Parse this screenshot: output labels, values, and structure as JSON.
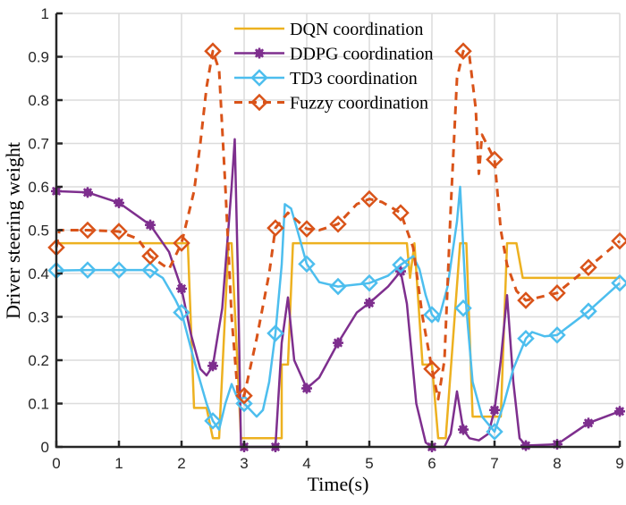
{
  "chart_data": {
    "type": "line",
    "title": "",
    "xlabel": "Time(s)",
    "ylabel": "Driver steering weight",
    "xlim": [
      0,
      9
    ],
    "ylim": [
      0,
      1
    ],
    "xticks": [
      0,
      1,
      2,
      3,
      4,
      5,
      6,
      7,
      8,
      9
    ],
    "yticks": [
      0,
      0.1,
      0.2,
      0.3,
      0.4,
      0.5,
      0.6,
      0.7,
      0.8,
      0.9,
      1
    ],
    "xtick_labels": [
      "0",
      "1",
      "2",
      "3",
      "4",
      "5",
      "6",
      "7",
      "8",
      "9"
    ],
    "ytick_labels": [
      "0",
      "0.1",
      "0.2",
      "0.3",
      "0.4",
      "0.5",
      "0.6",
      "0.7",
      "0.8",
      "0.9",
      "1"
    ],
    "grid": true,
    "legend_position": "top-center",
    "series": [
      {
        "name": "DQN coordination",
        "color": "#EDB120",
        "line_style": "solid",
        "marker": "none",
        "points": [
          [
            0,
            0.47
          ],
          [
            2.1,
            0.47
          ],
          [
            2.2,
            0.09
          ],
          [
            2.4,
            0.09
          ],
          [
            2.5,
            0.02
          ],
          [
            2.6,
            0.02
          ],
          [
            2.75,
            0.47
          ],
          [
            2.8,
            0.47
          ],
          [
            2.95,
            0.02
          ],
          [
            3.6,
            0.02
          ],
          [
            3.6,
            0.19
          ],
          [
            3.7,
            0.19
          ],
          [
            3.78,
            0.47
          ],
          [
            5.6,
            0.47
          ],
          [
            5.65,
            0.39
          ],
          [
            5.72,
            0.47
          ],
          [
            5.85,
            0.19
          ],
          [
            6.0,
            0.19
          ],
          [
            6.1,
            0.02
          ],
          [
            6.22,
            0.02
          ],
          [
            6.45,
            0.47
          ],
          [
            6.55,
            0.47
          ],
          [
            6.65,
            0.07
          ],
          [
            7.1,
            0.07
          ],
          [
            7.2,
            0.47
          ],
          [
            7.35,
            0.47
          ],
          [
            7.45,
            0.39
          ],
          [
            9,
            0.39
          ]
        ],
        "marker_points": []
      },
      {
        "name": "DDPG coordination",
        "color": "#7E2F8E",
        "line_style": "solid",
        "marker": "asterisk",
        "points": [
          [
            0,
            0.59
          ],
          [
            0.5,
            0.587
          ],
          [
            1,
            0.563
          ],
          [
            1.5,
            0.512
          ],
          [
            1.8,
            0.45
          ],
          [
            2,
            0.365
          ],
          [
            2.15,
            0.26
          ],
          [
            2.3,
            0.18
          ],
          [
            2.4,
            0.165
          ],
          [
            2.5,
            0.187
          ],
          [
            2.65,
            0.32
          ],
          [
            2.8,
            0.6
          ],
          [
            2.85,
            0.71
          ],
          [
            2.9,
            0.4
          ],
          [
            2.95,
            0
          ],
          [
            3.5,
            0
          ],
          [
            3.6,
            0.24
          ],
          [
            3.7,
            0.345
          ],
          [
            3.8,
            0.2
          ],
          [
            4,
            0.135
          ],
          [
            4.2,
            0.16
          ],
          [
            4.5,
            0.24
          ],
          [
            4.8,
            0.31
          ],
          [
            5,
            0.332
          ],
          [
            5.3,
            0.37
          ],
          [
            5.5,
            0.405
          ],
          [
            5.6,
            0.33
          ],
          [
            5.75,
            0.1
          ],
          [
            5.9,
            0.01
          ],
          [
            6,
            0
          ],
          [
            6.2,
            0
          ],
          [
            6.3,
            0.03
          ],
          [
            6.4,
            0.128
          ],
          [
            6.5,
            0.04
          ],
          [
            6.6,
            0.02
          ],
          [
            6.75,
            0.015
          ],
          [
            6.9,
            0.03
          ],
          [
            7,
            0.085
          ],
          [
            7.1,
            0.2
          ],
          [
            7.2,
            0.35
          ],
          [
            7.3,
            0.15
          ],
          [
            7.4,
            0.02
          ],
          [
            7.5,
            0.003
          ],
          [
            8,
            0.006
          ],
          [
            8.5,
            0.055
          ],
          [
            9,
            0.082
          ]
        ],
        "marker_points": [
          [
            0,
            0.59
          ],
          [
            0.5,
            0.587
          ],
          [
            1,
            0.563
          ],
          [
            1.5,
            0.512
          ],
          [
            2,
            0.365
          ],
          [
            2.5,
            0.187
          ],
          [
            3,
            0
          ],
          [
            3.5,
            0
          ],
          [
            4,
            0.135
          ],
          [
            4.5,
            0.24
          ],
          [
            5,
            0.332
          ],
          [
            5.5,
            0.405
          ],
          [
            6,
            0
          ],
          [
            6.5,
            0.04
          ],
          [
            7,
            0.085
          ],
          [
            7.5,
            0.003
          ],
          [
            8,
            0.006
          ],
          [
            8.5,
            0.055
          ],
          [
            9,
            0.082
          ]
        ]
      },
      {
        "name": "TD3 coordination",
        "color": "#4DBEEE",
        "line_style": "solid",
        "marker": "diamond",
        "points": [
          [
            0,
            0.407
          ],
          [
            0.5,
            0.408
          ],
          [
            1,
            0.408
          ],
          [
            1.5,
            0.408
          ],
          [
            1.7,
            0.39
          ],
          [
            1.9,
            0.34
          ],
          [
            2,
            0.31
          ],
          [
            2.2,
            0.2
          ],
          [
            2.4,
            0.1
          ],
          [
            2.5,
            0.06
          ],
          [
            2.6,
            0.04
          ],
          [
            2.7,
            0.1
          ],
          [
            2.8,
            0.145
          ],
          [
            2.9,
            0.11
          ],
          [
            3,
            0.1
          ],
          [
            3.1,
            0.085
          ],
          [
            3.2,
            0.07
          ],
          [
            3.3,
            0.085
          ],
          [
            3.4,
            0.15
          ],
          [
            3.5,
            0.262
          ],
          [
            3.6,
            0.42
          ],
          [
            3.65,
            0.56
          ],
          [
            3.75,
            0.55
          ],
          [
            3.85,
            0.5
          ],
          [
            4,
            0.422
          ],
          [
            4.2,
            0.38
          ],
          [
            4.5,
            0.37
          ],
          [
            5,
            0.378
          ],
          [
            5.3,
            0.395
          ],
          [
            5.5,
            0.42
          ],
          [
            5.7,
            0.44
          ],
          [
            5.8,
            0.41
          ],
          [
            5.9,
            0.35
          ],
          [
            6,
            0.305
          ],
          [
            6.1,
            0.29
          ],
          [
            6.25,
            0.37
          ],
          [
            6.4,
            0.52
          ],
          [
            6.45,
            0.6
          ],
          [
            6.55,
            0.32
          ],
          [
            6.65,
            0.15
          ],
          [
            6.8,
            0.07
          ],
          [
            7,
            0.035
          ],
          [
            7.15,
            0.1
          ],
          [
            7.3,
            0.18
          ],
          [
            7.5,
            0.25
          ],
          [
            7.6,
            0.265
          ],
          [
            7.8,
            0.255
          ],
          [
            8,
            0.258
          ],
          [
            8.5,
            0.313
          ],
          [
            9,
            0.378
          ]
        ],
        "marker_points": [
          [
            0,
            0.407
          ],
          [
            0.5,
            0.408
          ],
          [
            1,
            0.408
          ],
          [
            1.5,
            0.408
          ],
          [
            2,
            0.31
          ],
          [
            2.5,
            0.06
          ],
          [
            3,
            0.1
          ],
          [
            3.5,
            0.262
          ],
          [
            4,
            0.422
          ],
          [
            4.5,
            0.37
          ],
          [
            5,
            0.378
          ],
          [
            5.5,
            0.42
          ],
          [
            6,
            0.305
          ],
          [
            6.5,
            0.32
          ],
          [
            7,
            0.035
          ],
          [
            7.5,
            0.25
          ],
          [
            8,
            0.258
          ],
          [
            8.5,
            0.313
          ],
          [
            9,
            0.378
          ]
        ]
      },
      {
        "name": "Fuzzy coordination",
        "color": "#D95319",
        "line_style": "dashed",
        "marker": "diamond",
        "points": [
          [
            0,
            0.46
          ],
          [
            0.05,
            0.5
          ],
          [
            0.5,
            0.5
          ],
          [
            1,
            0.497
          ],
          [
            1.3,
            0.48
          ],
          [
            1.5,
            0.44
          ],
          [
            1.7,
            0.42
          ],
          [
            1.8,
            0.41
          ],
          [
            2,
            0.47
          ],
          [
            2.2,
            0.59
          ],
          [
            2.3,
            0.7
          ],
          [
            2.4,
            0.83
          ],
          [
            2.5,
            0.913
          ],
          [
            2.6,
            0.87
          ],
          [
            2.7,
            0.6
          ],
          [
            2.8,
            0.3
          ],
          [
            2.9,
            0.12
          ],
          [
            3,
            0.118
          ],
          [
            3.2,
            0.25
          ],
          [
            3.4,
            0.4
          ],
          [
            3.5,
            0.505
          ],
          [
            3.7,
            0.54
          ],
          [
            4,
            0.503
          ],
          [
            4.2,
            0.5
          ],
          [
            4.5,
            0.514
          ],
          [
            4.8,
            0.56
          ],
          [
            5,
            0.572
          ],
          [
            5.2,
            0.565
          ],
          [
            5.5,
            0.54
          ],
          [
            5.7,
            0.46
          ],
          [
            5.85,
            0.3
          ],
          [
            6,
            0.18
          ],
          [
            6.1,
            0.11
          ],
          [
            6.2,
            0.2
          ],
          [
            6.3,
            0.55
          ],
          [
            6.4,
            0.85
          ],
          [
            6.5,
            0.913
          ],
          [
            6.6,
            0.9
          ],
          [
            6.7,
            0.78
          ],
          [
            6.75,
            0.63
          ],
          [
            6.8,
            0.72
          ],
          [
            7,
            0.663
          ],
          [
            7.1,
            0.5
          ],
          [
            7.2,
            0.42
          ],
          [
            7.35,
            0.36
          ],
          [
            7.5,
            0.338
          ],
          [
            8,
            0.355
          ],
          [
            8.5,
            0.414
          ],
          [
            9,
            0.475
          ]
        ],
        "marker_points": [
          [
            0,
            0.46
          ],
          [
            0.5,
            0.5
          ],
          [
            1,
            0.497
          ],
          [
            1.5,
            0.44
          ],
          [
            2,
            0.47
          ],
          [
            2.5,
            0.913
          ],
          [
            3,
            0.118
          ],
          [
            3.5,
            0.505
          ],
          [
            4,
            0.503
          ],
          [
            4.5,
            0.514
          ],
          [
            5,
            0.572
          ],
          [
            5.5,
            0.54
          ],
          [
            6,
            0.18
          ],
          [
            6.5,
            0.913
          ],
          [
            7,
            0.663
          ],
          [
            7.5,
            0.338
          ],
          [
            8,
            0.355
          ],
          [
            8.5,
            0.414
          ],
          [
            9,
            0.475
          ]
        ]
      }
    ]
  }
}
